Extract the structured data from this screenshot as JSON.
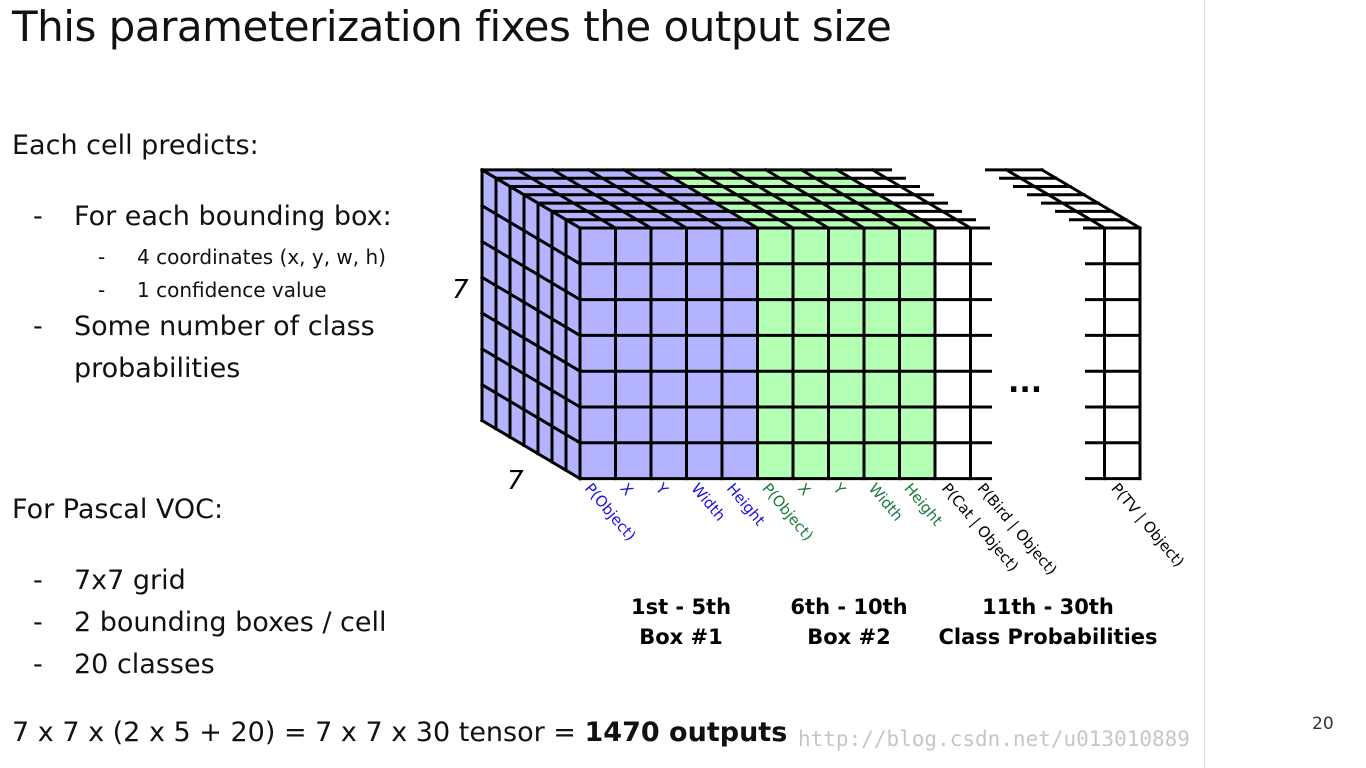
{
  "slide": {
    "title": "This parameterization fixes the output size",
    "each_cell_heading": "Each cell predicts:",
    "bullets": [
      {
        "text": "For each bounding box:",
        "sub": [
          "4 coordinates (x, y, w, h)",
          "1 confidence value"
        ]
      },
      {
        "text": "Some number of class",
        "text2": "probabilities"
      }
    ],
    "dash": "-",
    "pascal_heading": "For Pascal VOC:",
    "pascal_bullets": [
      "7x7 grid",
      "2 bounding boxes / cell",
      "20 classes"
    ],
    "formula_prefix": "7 x 7 x (2 x 5 + 20) = 7 x 7 x 30 tensor = ",
    "formula_bold": "1470 outputs",
    "watermark": "http://blog.csdn.net/u013010889",
    "page_number": "20"
  },
  "diagram": {
    "dim_height": "7",
    "dim_depth": "7",
    "ellipsis": "...",
    "box1_labels": [
      "P(Object)",
      "X",
      "Y",
      "Width",
      "Height"
    ],
    "box2_labels": [
      "P(Object)",
      "X",
      "Y",
      "Width",
      "Height"
    ],
    "class_labels": [
      "P(Cat | Object)",
      "P(Bird | Object)",
      "P(TV | Object)"
    ],
    "groups": [
      {
        "line1": "1st - 5th",
        "line2": "Box #1"
      },
      {
        "line1": "6th - 10th",
        "line2": "Box #2"
      },
      {
        "line1": "11th - 30th",
        "line2": "Class Probabilities"
      }
    ],
    "colors": {
      "box1_fill": "#b3b3ff",
      "box2_fill": "#b3ffb3",
      "box1_text": "#1a10e0",
      "box2_text": "#1a7a3a",
      "line": "#000000"
    }
  }
}
